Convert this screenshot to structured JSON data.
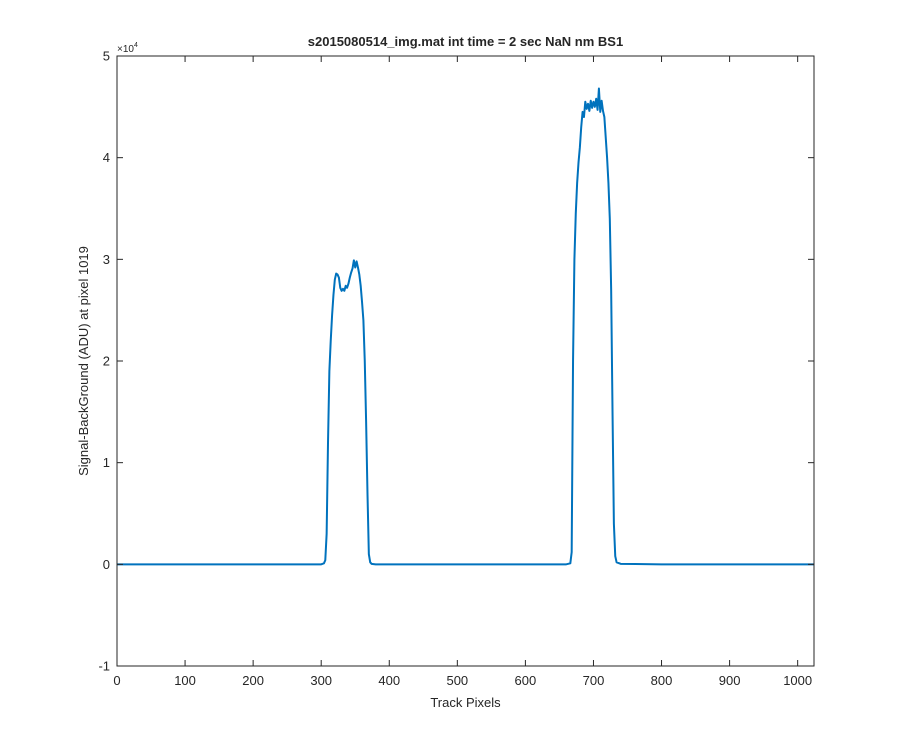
{
  "chart_data": {
    "type": "line",
    "title": "s2015080514_img.mat int time = 2 sec  NaN nm BS1",
    "xlabel": "Track Pixels",
    "ylabel": "Signal-BackGround (ADU) at pixel 1019",
    "xlim": [
      0,
      1024
    ],
    "ylim": [
      -10000,
      50000
    ],
    "y_exponent_label": "×10",
    "y_exponent_power": "4",
    "x_ticks": [
      0,
      100,
      200,
      300,
      400,
      500,
      600,
      700,
      800,
      900,
      1000
    ],
    "x_tick_labels": [
      "0",
      "100",
      "200",
      "300",
      "400",
      "500",
      "600",
      "700",
      "800",
      "900",
      "1000"
    ],
    "y_ticks": [
      -10000,
      0,
      10000,
      20000,
      30000,
      40000,
      50000
    ],
    "y_tick_labels": [
      "-1",
      "0",
      "1",
      "2",
      "3",
      "4",
      "5"
    ],
    "grid": false,
    "box": true,
    "series": [
      {
        "color": "#0072BD",
        "x": [
          0,
          100,
          200,
          300,
          304,
          306,
          308,
          310,
          312,
          314,
          316,
          318,
          320,
          322,
          324,
          326,
          328,
          330,
          332,
          334,
          336,
          338,
          340,
          342,
          344,
          346,
          348,
          350,
          352,
          354,
          356,
          358,
          360,
          362,
          364,
          366,
          368,
          370,
          372,
          374,
          380,
          500,
          600,
          660,
          666,
          668,
          670,
          672,
          674,
          676,
          678,
          680,
          682,
          684,
          686,
          688,
          690,
          692,
          694,
          696,
          698,
          700,
          702,
          704,
          706,
          708,
          710,
          712,
          714,
          716,
          718,
          720,
          722,
          724,
          726,
          728,
          730,
          732,
          734,
          740,
          800,
          900,
          1024
        ],
        "y": [
          0,
          0,
          0,
          0,
          100,
          400,
          3000,
          12000,
          19000,
          22000,
          24500,
          26500,
          28000,
          28600,
          28500,
          28200,
          27200,
          26900,
          27100,
          26900,
          27400,
          27200,
          27600,
          28200,
          28700,
          29100,
          29900,
          29200,
          29800,
          29200,
          28500,
          27400,
          25800,
          24000,
          20000,
          14000,
          7000,
          1000,
          200,
          50,
          0,
          0,
          0,
          0,
          100,
          1200,
          20000,
          30000,
          34500,
          37500,
          39500,
          41000,
          43000,
          44500,
          44000,
          45500,
          44800,
          45300,
          44600,
          45600,
          44900,
          45500,
          45000,
          45800,
          44700,
          46800,
          44500,
          45600,
          44600,
          44000,
          42000,
          40000,
          37500,
          34000,
          27000,
          15000,
          4000,
          800,
          200,
          50,
          0,
          0,
          0
        ]
      }
    ]
  }
}
